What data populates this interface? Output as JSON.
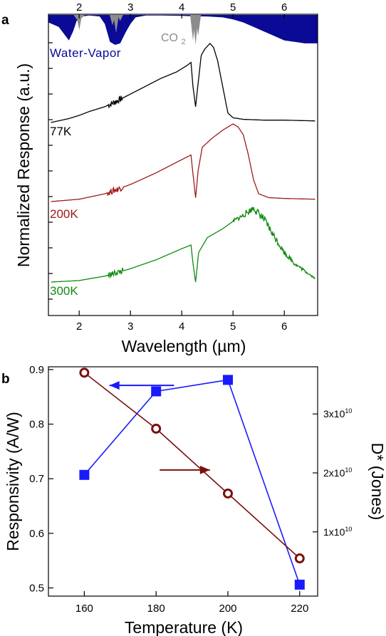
{
  "chart_data": [
    {
      "panel_label": "a",
      "type": "line",
      "xlabel": "Wavelength (µm)",
      "ylabel": "Normalized Response (a.u.)",
      "xlim": [
        1.4,
        6.65
      ],
      "x_ticks": [
        2,
        3,
        4,
        5,
        6
      ],
      "top_x_ticks": [
        2,
        3,
        4,
        5,
        6
      ],
      "absorption": {
        "water_label": "Water-Vapor",
        "water_color": "#0a0a96",
        "co2_label": "CO",
        "co2_sub": "2",
        "co2_color": "#8c8c8c",
        "water_bands": [
          [
            1.4,
            0.25
          ],
          [
            1.6,
            0.4
          ],
          [
            1.8,
            0.85
          ],
          [
            1.88,
            0.55
          ],
          [
            1.95,
            0.2
          ],
          [
            2.05,
            0.05
          ],
          [
            2.2,
            0.02
          ],
          [
            2.4,
            0.05
          ],
          [
            2.5,
            0.3
          ],
          [
            2.6,
            0.9
          ],
          [
            2.7,
            1.0
          ],
          [
            2.8,
            0.95
          ],
          [
            2.9,
            0.6
          ],
          [
            3.0,
            0.3
          ],
          [
            3.1,
            0.08
          ],
          [
            3.3,
            0.02
          ],
          [
            3.6,
            0.02
          ],
          [
            4.0,
            0.03
          ],
          [
            4.2,
            0.04
          ],
          [
            4.5,
            0.05
          ],
          [
            4.8,
            0.08
          ],
          [
            5.0,
            0.15
          ],
          [
            5.2,
            0.25
          ],
          [
            5.4,
            0.4
          ],
          [
            5.6,
            0.55
          ],
          [
            5.8,
            0.7
          ],
          [
            6.0,
            0.85
          ],
          [
            6.2,
            0.9
          ],
          [
            6.4,
            0.95
          ],
          [
            6.65,
            0.95
          ]
        ],
        "co2_bands": [
          [
            1.95,
            0.15
          ],
          [
            2.0,
            0.5
          ],
          [
            2.05,
            0.1
          ],
          [
            2.65,
            0.35
          ],
          [
            2.72,
            0.6
          ],
          [
            2.8,
            0.2
          ],
          [
            4.22,
            0.85
          ],
          [
            4.27,
            1.0
          ],
          [
            4.32,
            0.7
          ]
        ]
      },
      "series": [
        {
          "name": "77K",
          "color": "#000000",
          "noise": 0.0,
          "points": [
            [
              1.45,
              0.0
            ],
            [
              1.8,
              0.05
            ],
            [
              2.0,
              0.09
            ],
            [
              2.2,
              0.14
            ],
            [
              2.5,
              0.2
            ],
            [
              2.7,
              0.26
            ],
            [
              3.0,
              0.36
            ],
            [
              3.3,
              0.46
            ],
            [
              3.6,
              0.56
            ],
            [
              3.9,
              0.64
            ],
            [
              4.1,
              0.72
            ],
            [
              4.18,
              0.76
            ],
            [
              4.22,
              0.45
            ],
            [
              4.27,
              0.2
            ],
            [
              4.32,
              0.5
            ],
            [
              4.38,
              0.85
            ],
            [
              4.45,
              0.93
            ],
            [
              4.55,
              1.0
            ],
            [
              4.62,
              0.95
            ],
            [
              4.7,
              0.78
            ],
            [
              4.8,
              0.45
            ],
            [
              4.9,
              0.12
            ],
            [
              5.0,
              0.06
            ],
            [
              5.2,
              0.04
            ],
            [
              5.6,
              0.03
            ],
            [
              6.0,
              0.03
            ],
            [
              6.6,
              0.02
            ]
          ]
        },
        {
          "name": "200K",
          "color": "#a01b1b",
          "noise": 0.0,
          "points": [
            [
              1.45,
              0.0
            ],
            [
              2.0,
              0.03
            ],
            [
              2.5,
              0.1
            ],
            [
              3.0,
              0.22
            ],
            [
              3.5,
              0.37
            ],
            [
              4.0,
              0.54
            ],
            [
              4.18,
              0.6
            ],
            [
              4.22,
              0.35
            ],
            [
              4.27,
              0.05
            ],
            [
              4.32,
              0.4
            ],
            [
              4.4,
              0.7
            ],
            [
              4.6,
              0.82
            ],
            [
              4.8,
              0.92
            ],
            [
              5.0,
              1.0
            ],
            [
              5.1,
              0.96
            ],
            [
              5.2,
              0.86
            ],
            [
              5.3,
              0.6
            ],
            [
              5.4,
              0.28
            ],
            [
              5.5,
              0.1
            ],
            [
              5.7,
              0.05
            ],
            [
              6.0,
              0.04
            ],
            [
              6.6,
              0.03
            ]
          ]
        },
        {
          "name": "300K",
          "color": "#118a11",
          "noise": 0.09,
          "points": [
            [
              1.45,
              0.0
            ],
            [
              2.0,
              0.02
            ],
            [
              2.5,
              0.08
            ],
            [
              3.0,
              0.18
            ],
            [
              3.5,
              0.3
            ],
            [
              4.0,
              0.45
            ],
            [
              4.18,
              0.5
            ],
            [
              4.22,
              0.25
            ],
            [
              4.27,
              0.0
            ],
            [
              4.33,
              0.4
            ],
            [
              4.5,
              0.6
            ],
            [
              4.8,
              0.72
            ],
            [
              5.0,
              0.82
            ],
            [
              5.2,
              0.9
            ],
            [
              5.4,
              1.0
            ],
            [
              5.6,
              0.85
            ],
            [
              5.8,
              0.62
            ],
            [
              6.0,
              0.4
            ],
            [
              6.2,
              0.25
            ],
            [
              6.4,
              0.15
            ],
            [
              6.6,
              0.05
            ]
          ]
        }
      ]
    },
    {
      "panel_label": "b",
      "type": "scatter",
      "xlabel": "Temperature (K)",
      "ylabel": "Responsivity (A/W)",
      "y2label": "D* (Jones)",
      "xlim": [
        150,
        225
      ],
      "ylim": [
        0.485,
        0.905
      ],
      "y2lim": [
        -900000000.0,
        38000000000.0
      ],
      "x_ticks": [
        160,
        180,
        200,
        220
      ],
      "y_ticks": [
        0.5,
        0.6,
        0.7,
        0.8,
        0.9
      ],
      "y2_ticks": [
        {
          "value": 10000000000.0,
          "mant": "1x10",
          "exp": "10"
        },
        {
          "value": 20000000000.0,
          "mant": "2x10",
          "exp": "10"
        },
        {
          "value": 30000000000.0,
          "mant": "3x10",
          "exp": "10"
        }
      ],
      "series": [
        {
          "name": "Responsivity",
          "axis": "left",
          "marker": "square",
          "color": "#1a1aff",
          "x": [
            160,
            180,
            200,
            220
          ],
          "y": [
            0.707,
            0.86,
            0.881,
            0.506
          ]
        },
        {
          "name": "D*",
          "axis": "right",
          "marker": "circle",
          "color": "#7a1010",
          "x": [
            160,
            180,
            200,
            220
          ],
          "y": [
            37000000000.0,
            27500000000.0,
            16500000000.0,
            5500000000.0
          ]
        }
      ],
      "arrows": [
        {
          "axis": "left",
          "from": [
            185,
            0.871
          ],
          "to": [
            167,
            0.871
          ],
          "color": "#1a1aff"
        },
        {
          "axis": "right",
          "from": [
            181,
            20500000000.0
          ],
          "to": [
            195,
            20500000000.0
          ],
          "color": "#7a1010"
        }
      ]
    }
  ]
}
